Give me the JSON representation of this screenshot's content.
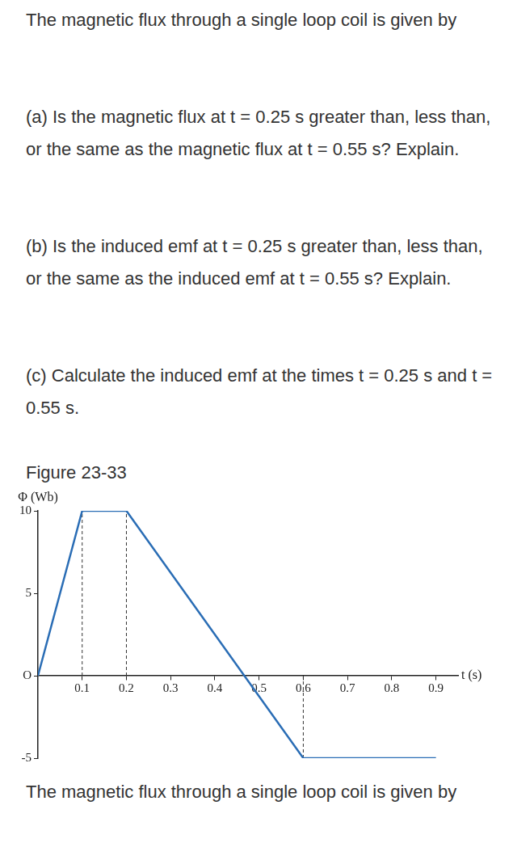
{
  "header": {
    "text": "The magnetic flux through a single loop coil is given by"
  },
  "questions": [
    "(a) Is the magnetic flux at t = 0.25 s greater than, less than, or the same as the magnetic flux at t = 0.55 s? Explain.",
    "(b) Is the induced emf at t = 0.25 s greater than, less than, or the same as the induced emf at t = 0.55 s? Explain.",
    "(c) Calculate the induced emf at the times t = 0.25 s and t = 0.55 s."
  ],
  "figure": {
    "caption": "Figure 23-33"
  },
  "chart_data": {
    "type": "line",
    "y_label": "Φ (Wb)",
    "x_label": "t (s)",
    "x": [
      0,
      0.1,
      0.2,
      0.6,
      0.9
    ],
    "values": [
      0,
      10,
      10,
      -5,
      -5
    ],
    "color": "#2a6db5",
    "xlim": [
      0,
      0.95
    ],
    "xticks": [
      0.1,
      0.2,
      0.3,
      0.4,
      0.5,
      0.6,
      0.7,
      0.8,
      0.9
    ],
    "ylim": [
      -5,
      10
    ],
    "yticks": [
      -5,
      {
        "value": 0,
        "label": "O"
      },
      5,
      10
    ],
    "grid": false
  },
  "footer": {
    "text": "The magnetic flux through a single loop coil is given by"
  }
}
